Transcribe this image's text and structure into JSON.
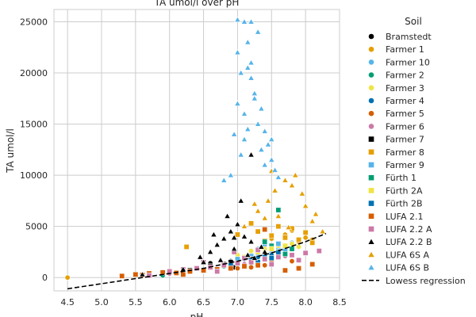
{
  "chart_data": {
    "type": "scatter",
    "title": "TA umol/l over pH",
    "xlabel": "pH",
    "ylabel": "TA umol/l",
    "xlim": [
      4.3,
      8.5
    ],
    "ylim": [
      -1300,
      26200
    ],
    "xticks": [
      4.5,
      5.0,
      5.5,
      6.0,
      6.5,
      7.0,
      7.5,
      8.0,
      8.5
    ],
    "xtick_labels": [
      "4.5",
      "5.0",
      "5.5",
      "6.0",
      "6.5",
      "7.0",
      "7.5",
      "8.0",
      "8.5"
    ],
    "yticks": [
      0,
      5000,
      10000,
      15000,
      20000,
      25000
    ],
    "ytick_labels": [
      "0",
      "5000",
      "10000",
      "15000",
      "20000",
      "25000"
    ],
    "grid": true,
    "legend_title": "Soil",
    "legend_position": "outside-right",
    "series": [
      {
        "name": "Bramstedt",
        "marker": "circle",
        "color": "#000000",
        "points": [
          [
            6.4,
            900
          ],
          [
            6.6,
            1400
          ],
          [
            6.8,
            1200
          ],
          [
            6.95,
            1000
          ],
          [
            7.1,
            1300
          ],
          [
            6.7,
            700
          ],
          [
            6.9,
            1600
          ]
        ]
      },
      {
        "name": "Farmer 1",
        "marker": "circle",
        "color": "#e69f00",
        "points": [
          [
            4.5,
            0
          ],
          [
            7.3,
            4500
          ],
          [
            7.5,
            3800
          ],
          [
            7.7,
            4200
          ],
          [
            7.9,
            3500
          ],
          [
            8.0,
            3900
          ],
          [
            7.6,
            3200
          ],
          [
            7.8,
            4600
          ],
          [
            7.4,
            3100
          ],
          [
            8.1,
            3700
          ]
        ]
      },
      {
        "name": "Farmer 10",
        "marker": "circle",
        "color": "#56b4e9",
        "points": [
          [
            7.2,
            2600
          ],
          [
            7.4,
            3200
          ],
          [
            7.6,
            2900
          ],
          [
            7.8,
            3400
          ],
          [
            7.5,
            2500
          ],
          [
            7.7,
            3000
          ],
          [
            7.3,
            2800
          ]
        ]
      },
      {
        "name": "Farmer 2",
        "marker": "circle",
        "color": "#009e73",
        "points": [
          [
            5.9,
            200
          ],
          [
            6.2,
            500
          ],
          [
            6.8,
            1100
          ],
          [
            7.2,
            1500
          ],
          [
            7.5,
            2000
          ],
          [
            7.0,
            1300
          ]
        ]
      },
      {
        "name": "Farmer 3",
        "marker": "circle",
        "color": "#f0e442",
        "points": [
          [
            7.0,
            2200
          ],
          [
            7.4,
            2800
          ],
          [
            7.6,
            3100
          ],
          [
            7.8,
            3300
          ],
          [
            7.2,
            2600
          ],
          [
            7.9,
            3000
          ]
        ]
      },
      {
        "name": "Farmer 4",
        "marker": "circle",
        "color": "#0072b2",
        "points": [
          [
            6.9,
            1500
          ],
          [
            7.3,
            2000
          ],
          [
            7.6,
            2400
          ],
          [
            7.1,
            1800
          ],
          [
            7.5,
            2200
          ]
        ]
      },
      {
        "name": "Farmer 5",
        "marker": "circle",
        "color": "#d55e00",
        "points": [
          [
            6.2,
            300
          ],
          [
            6.7,
            800
          ],
          [
            7.0,
            900
          ],
          [
            7.4,
            1200
          ],
          [
            7.8,
            1600
          ],
          [
            7.2,
            1000
          ]
        ]
      },
      {
        "name": "Farmer 6",
        "marker": "circle",
        "color": "#cc79a7",
        "points": [
          [
            6.0,
            400
          ],
          [
            6.5,
            700
          ],
          [
            6.9,
            1100
          ],
          [
            7.3,
            1500
          ],
          [
            7.7,
            2100
          ],
          [
            7.1,
            1300
          ]
        ]
      },
      {
        "name": "Farmer 7",
        "marker": "square",
        "color": "#000000",
        "points": [
          [
            6.3,
            700
          ],
          [
            6.6,
            1100
          ],
          [
            6.9,
            1500
          ],
          [
            7.1,
            1900
          ],
          [
            6.8,
            1300
          ]
        ]
      },
      {
        "name": "Farmer 8",
        "marker": "square",
        "color": "#e69f00",
        "points": [
          [
            6.25,
            3000
          ],
          [
            7.0,
            4200
          ],
          [
            7.3,
            4500
          ],
          [
            7.5,
            4100
          ],
          [
            7.7,
            3900
          ],
          [
            7.9,
            3700
          ],
          [
            8.0,
            4400
          ],
          [
            7.6,
            5000
          ],
          [
            7.4,
            3600
          ],
          [
            7.8,
            4800
          ],
          [
            8.1,
            3400
          ],
          [
            7.2,
            5300
          ]
        ]
      },
      {
        "name": "Farmer 9",
        "marker": "square",
        "color": "#56b4e9",
        "points": [
          [
            7.0,
            1800
          ],
          [
            7.3,
            2400
          ],
          [
            7.5,
            2900
          ],
          [
            7.7,
            2700
          ],
          [
            7.2,
            2100
          ],
          [
            7.6,
            3300
          ]
        ]
      },
      {
        "name": "Fürth 1",
        "marker": "square",
        "color": "#009e73",
        "points": [
          [
            7.4,
            3500
          ],
          [
            7.6,
            2500
          ],
          [
            7.8,
            2800
          ],
          [
            7.5,
            3100
          ],
          [
            7.7,
            2300
          ],
          [
            7.6,
            6600
          ]
        ]
      },
      {
        "name": "Fürth 2A",
        "marker": "square",
        "color": "#f0e442",
        "points": [
          [
            7.1,
            2000
          ],
          [
            7.3,
            2500
          ],
          [
            7.5,
            2800
          ],
          [
            7.7,
            3100
          ],
          [
            7.4,
            2300
          ],
          [
            7.2,
            1800
          ]
        ]
      },
      {
        "name": "Fürth 2B",
        "marker": "square",
        "color": "#0072b2",
        "points": [
          [
            6.9,
            1200
          ],
          [
            7.2,
            1700
          ],
          [
            7.4,
            2000
          ],
          [
            7.6,
            2400
          ],
          [
            7.3,
            1500
          ],
          [
            7.5,
            1900
          ]
        ]
      },
      {
        "name": "LUFA 2.1",
        "marker": "square",
        "color": "#d55e00",
        "points": [
          [
            5.3,
            150
          ],
          [
            5.5,
            300
          ],
          [
            5.7,
            400
          ],
          [
            5.9,
            500
          ],
          [
            6.1,
            450
          ],
          [
            6.3,
            600
          ],
          [
            6.5,
            700
          ],
          [
            6.7,
            800
          ],
          [
            6.9,
            900
          ],
          [
            7.1,
            1100
          ],
          [
            7.3,
            1200
          ],
          [
            7.5,
            1400
          ],
          [
            7.7,
            700
          ],
          [
            7.9,
            900
          ],
          [
            8.1,
            1300
          ],
          [
            7.4,
            4700
          ],
          [
            6.2,
            300
          ],
          [
            5.6,
            250
          ]
        ]
      },
      {
        "name": "LUFA 2.2 A",
        "marker": "square",
        "color": "#cc79a7",
        "points": [
          [
            5.7,
            200
          ],
          [
            6.0,
            600
          ],
          [
            6.2,
            800
          ],
          [
            6.4,
            900
          ],
          [
            6.6,
            1000
          ],
          [
            6.8,
            1200
          ],
          [
            7.0,
            1400
          ],
          [
            7.2,
            1500
          ],
          [
            7.4,
            1800
          ],
          [
            7.6,
            2000
          ],
          [
            7.8,
            2200
          ],
          [
            8.0,
            2400
          ],
          [
            7.1,
            1900
          ],
          [
            7.5,
            1300
          ],
          [
            6.5,
            1500
          ],
          [
            6.95,
            2500
          ],
          [
            7.3,
            2700
          ],
          [
            6.7,
            600
          ],
          [
            7.9,
            1700
          ],
          [
            8.2,
            2600
          ]
        ]
      },
      {
        "name": "LUFA 2.2 B",
        "marker": "triangle",
        "color": "#000000",
        "points": [
          [
            5.6,
            300
          ],
          [
            6.2,
            800
          ],
          [
            6.45,
            2000
          ],
          [
            6.6,
            2500
          ],
          [
            6.7,
            3200
          ],
          [
            6.8,
            3800
          ],
          [
            6.9,
            4500
          ],
          [
            7.0,
            5200
          ],
          [
            7.05,
            7500
          ],
          [
            6.85,
            6000
          ],
          [
            6.95,
            2800
          ],
          [
            7.1,
            4000
          ],
          [
            7.2,
            3500
          ],
          [
            6.5,
            1500
          ],
          [
            6.75,
            1700
          ],
          [
            7.15,
            2200
          ],
          [
            6.65,
            4200
          ],
          [
            7.25,
            1900
          ],
          [
            7.4,
            2500
          ],
          [
            7.2,
            12000
          ],
          [
            6.95,
            3900
          ],
          [
            7.35,
            3000
          ]
        ]
      },
      {
        "name": "LUFA 6S A",
        "marker": "triangle",
        "color": "#e69f00",
        "points": [
          [
            7.1,
            5000
          ],
          [
            7.3,
            6500
          ],
          [
            7.45,
            7500
          ],
          [
            7.55,
            8500
          ],
          [
            7.7,
            9500
          ],
          [
            7.85,
            10000
          ],
          [
            8.0,
            7000
          ],
          [
            8.1,
            5500
          ],
          [
            8.25,
            4500
          ],
          [
            7.6,
            6000
          ],
          [
            7.4,
            5800
          ],
          [
            7.95,
            8200
          ],
          [
            7.75,
            4900
          ],
          [
            8.15,
            6200
          ],
          [
            7.5,
            10400
          ],
          [
            7.8,
            9000
          ],
          [
            7.25,
            7200
          ]
        ]
      },
      {
        "name": "LUFA 6S B",
        "marker": "triangle",
        "color": "#56b4e9",
        "points": [
          [
            6.9,
            10000
          ],
          [
            6.95,
            14000
          ],
          [
            7.0,
            17000
          ],
          [
            7.05,
            20000
          ],
          [
            7.1,
            25000
          ],
          [
            7.15,
            23000
          ],
          [
            7.2,
            21000
          ],
          [
            7.25,
            18000
          ],
          [
            7.3,
            15000
          ],
          [
            7.35,
            12500
          ],
          [
            7.4,
            11000
          ],
          [
            7.45,
            13000
          ],
          [
            7.5,
            11500
          ],
          [
            7.55,
            10500
          ],
          [
            7.1,
            16000
          ],
          [
            7.2,
            19500
          ],
          [
            7.0,
            22000
          ],
          [
            7.3,
            24000
          ],
          [
            7.15,
            14500
          ],
          [
            7.25,
            17500
          ],
          [
            7.05,
            12000
          ],
          [
            7.35,
            16500
          ],
          [
            7.6,
            9800
          ],
          [
            7.0,
            25200
          ],
          [
            7.2,
            25000
          ],
          [
            7.1,
            13500
          ],
          [
            7.4,
            14300
          ],
          [
            6.8,
            9500
          ],
          [
            7.5,
            13500
          ],
          [
            7.15,
            20500
          ]
        ]
      }
    ],
    "regression": {
      "name": "Lowess regression",
      "style": "dashed",
      "color": "#000000",
      "points": [
        [
          4.5,
          -1100
        ],
        [
          5.0,
          -600
        ],
        [
          5.5,
          -100
        ],
        [
          6.0,
          400
        ],
        [
          6.5,
          900
        ],
        [
          7.0,
          1600
        ],
        [
          7.5,
          2400
        ],
        [
          8.0,
          3500
        ],
        [
          8.3,
          4300
        ]
      ]
    }
  }
}
